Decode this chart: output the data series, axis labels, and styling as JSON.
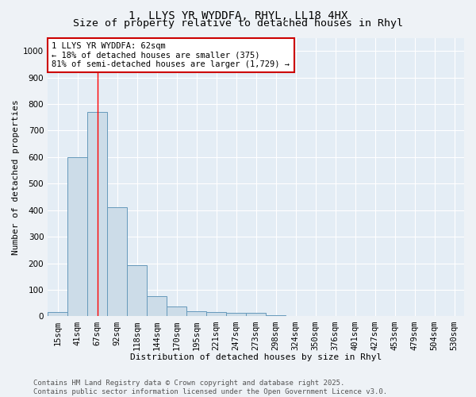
{
  "title_line1": "1, LLYS YR WYDDFA, RHYL, LL18 4HX",
  "title_line2": "Size of property relative to detached houses in Rhyl",
  "xlabel": "Distribution of detached houses by size in Rhyl",
  "ylabel": "Number of detached properties",
  "bar_labels": [
    "15sqm",
    "41sqm",
    "67sqm",
    "92sqm",
    "118sqm",
    "144sqm",
    "170sqm",
    "195sqm",
    "221sqm",
    "247sqm",
    "273sqm",
    "298sqm",
    "324sqm",
    "350sqm",
    "376sqm",
    "401sqm",
    "427sqm",
    "453sqm",
    "479sqm",
    "504sqm",
    "530sqm"
  ],
  "bar_values": [
    15,
    600,
    770,
    410,
    192,
    75,
    37,
    18,
    15,
    12,
    12,
    5,
    0,
    0,
    0,
    0,
    0,
    0,
    0,
    0,
    0
  ],
  "bar_color": "#ccdce8",
  "bar_edge_color": "#6699bb",
  "red_line_x": 2,
  "annotation_line1": "1 LLYS YR WYDDFA: 62sqm",
  "annotation_line2": "← 18% of detached houses are smaller (375)",
  "annotation_line3": "81% of semi-detached houses are larger (1,729) →",
  "annotation_box_facecolor": "#ffffff",
  "annotation_box_edgecolor": "#cc0000",
  "ylim": [
    0,
    1050
  ],
  "yticks": [
    0,
    100,
    200,
    300,
    400,
    500,
    600,
    700,
    800,
    900,
    1000
  ],
  "footer_line1": "Contains HM Land Registry data © Crown copyright and database right 2025.",
  "footer_line2": "Contains public sector information licensed under the Open Government Licence v3.0.",
  "bg_color": "#eef2f6",
  "plot_bg_color": "#e4edf5",
  "grid_color": "#ffffff",
  "title1_fontsize": 10,
  "title2_fontsize": 9.5,
  "axis_label_fontsize": 8,
  "tick_fontsize": 7.5,
  "annot_fontsize": 7.5,
  "footer_fontsize": 6.5
}
